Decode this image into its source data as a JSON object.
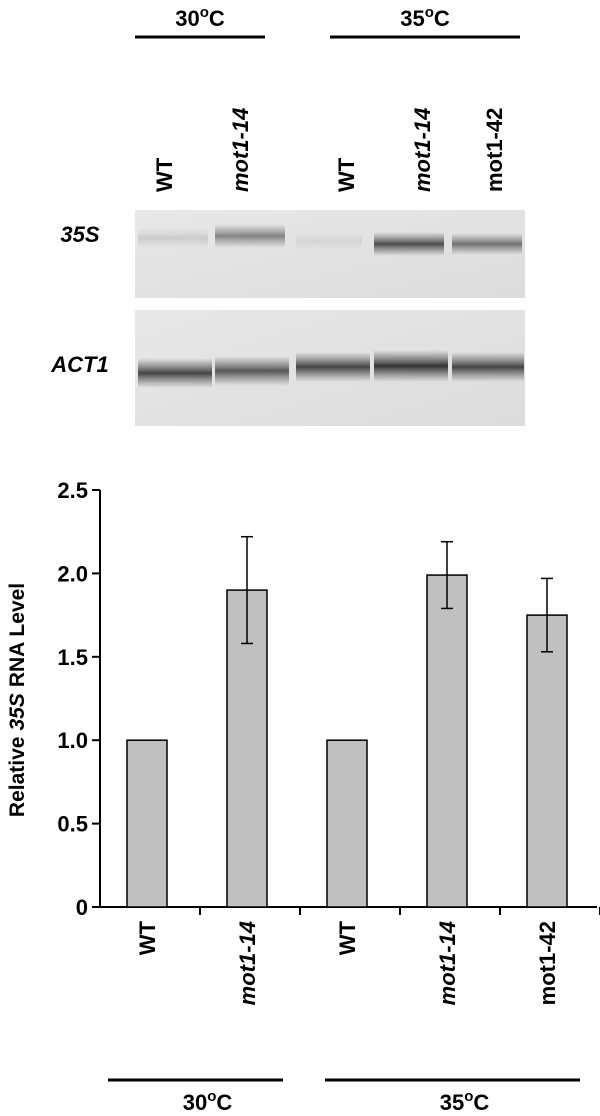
{
  "blot": {
    "groups": [
      [
        "30",
        "o",
        "C"
      ],
      [
        "35",
        "o",
        "C"
      ]
    ],
    "lanes": [
      "WT",
      "mot1-14",
      "WT",
      "mot1-14",
      "mot1-42"
    ],
    "rows": [
      "35S",
      "ACT1"
    ]
  },
  "chart_data": {
    "type": "bar",
    "ylabel": [
      "Relative",
      "35S",
      "RNA Level"
    ],
    "categories": [
      "WT",
      "mot1-14",
      "WT",
      "mot1-14",
      "mot1-42"
    ],
    "values": [
      1.0,
      1.9,
      1.0,
      1.99,
      1.75
    ],
    "errors": [
      null,
      0.32,
      null,
      0.2,
      0.22
    ],
    "color": "#c0c0c0",
    "ylim": [
      0,
      2.5
    ],
    "yticks": [
      0,
      0.5,
      {
        "value": 1,
        "label": "1.0"
      },
      1.5,
      {
        "value": 2,
        "label": "2.0"
      },
      2.5
    ],
    "groups": [
      [
        "30",
        "o",
        "C"
      ],
      [
        "35",
        "o",
        "C"
      ]
    ]
  }
}
